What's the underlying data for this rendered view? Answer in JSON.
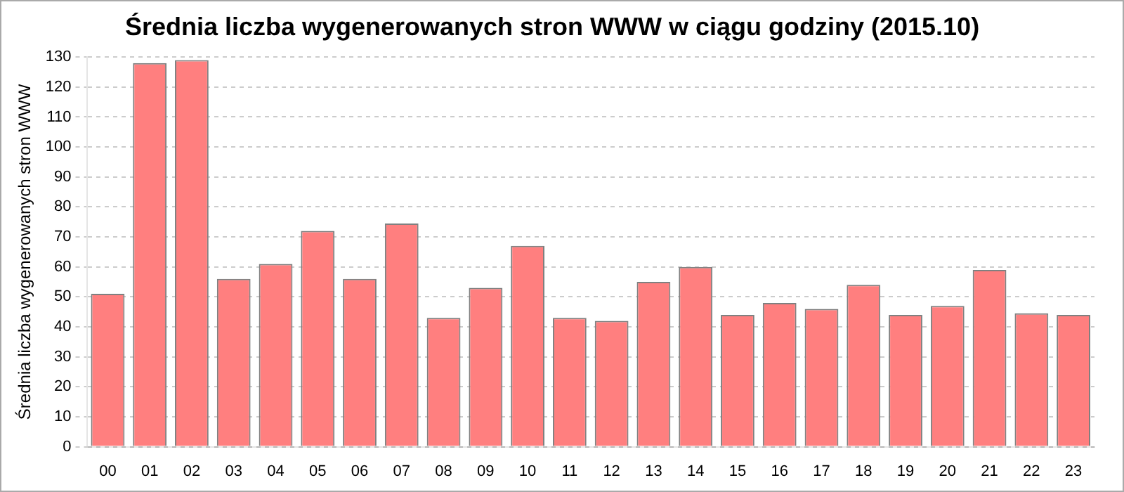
{
  "chart_data": {
    "type": "bar",
    "title": "Średnia liczba wygenerowanych stron WWW w ciągu godziny (2015.10)",
    "ylabel": "Średnia liczba wygenerowanych stron WWW",
    "categories": [
      "00",
      "01",
      "02",
      "03",
      "04",
      "05",
      "06",
      "07",
      "08",
      "09",
      "10",
      "11",
      "12",
      "13",
      "14",
      "15",
      "16",
      "17",
      "18",
      "19",
      "20",
      "21",
      "22",
      "23"
    ],
    "values": [
      51,
      128,
      129,
      56,
      61,
      72,
      56,
      74.5,
      43,
      53,
      67,
      43,
      42,
      55,
      60,
      44,
      48,
      46,
      54,
      44,
      47,
      59,
      44.5,
      44
    ],
    "color": "#ff7f7f",
    "ylim": [
      0,
      130
    ],
    "yticks": [
      0,
      10,
      20,
      30,
      40,
      50,
      60,
      70,
      80,
      90,
      100,
      110,
      120,
      130
    ],
    "grid": "y",
    "legend": false
  }
}
